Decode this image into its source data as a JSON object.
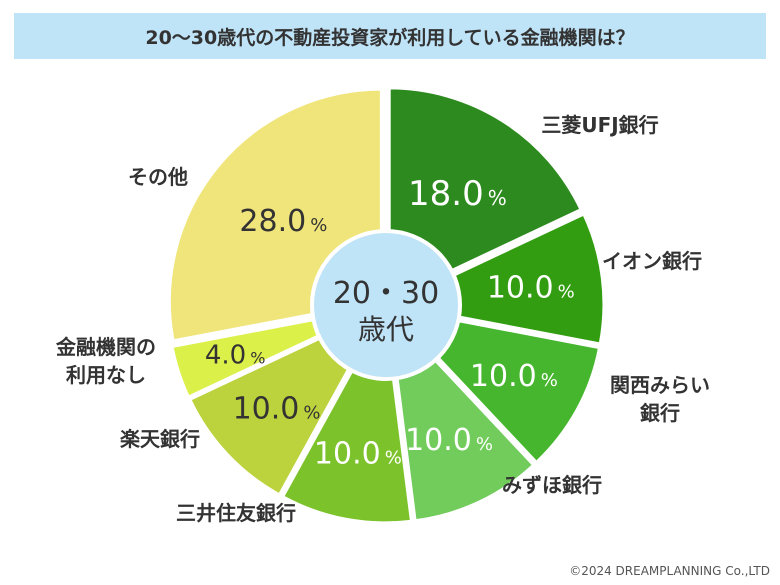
{
  "title": "20〜30歳代の不動産投資家が利用している金融機関は？",
  "center_label": {
    "line1": "20・30",
    "line2": "歳代"
  },
  "copyright": "©2024 DREAMPLANNING Co.,LTD",
  "percent_unit": "%",
  "chart_data": {
    "type": "pie",
    "title": "20〜30歳代の不動産投資家が利用している金融機関は？",
    "unit": "%",
    "slices": [
      {
        "label": "三菱UFJ銀行",
        "value": 18.0,
        "value_text": "18.0",
        "color": "#2d8a1e"
      },
      {
        "label": "イオン銀行",
        "value": 10.0,
        "value_text": "10.0",
        "color": "#329d10"
      },
      {
        "label": "関西みらい銀行",
        "value": 10.0,
        "value_text": "10.0",
        "color": "#45b62d"
      },
      {
        "label": "みずほ銀行",
        "value": 10.0,
        "value_text": "10.0",
        "color": "#71cc5c"
      },
      {
        "label": "三井住友銀行",
        "value": 10.0,
        "value_text": "10.0",
        "color": "#7cc22a"
      },
      {
        "label": "楽天銀行",
        "value": 10.0,
        "value_text": "10.0",
        "color": "#bcd33d"
      },
      {
        "label": "金融機関の利用なし",
        "value": 4.0,
        "value_text": "4.0",
        "color": "#dcf04a"
      },
      {
        "label": "その他",
        "value": 28.0,
        "value_text": "28.0",
        "color": "#f0e57a"
      }
    ]
  }
}
